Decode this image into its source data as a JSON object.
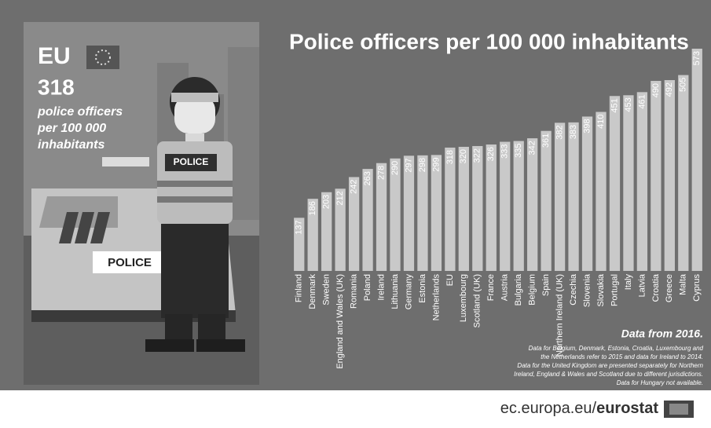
{
  "chart_data": {
    "type": "bar",
    "title": "Police officers per 100 000 inhabitants",
    "categories": [
      "Finland",
      "Denmark",
      "Sweden",
      "England and Wales (UK)",
      "Romania",
      "Poland",
      "Ireland",
      "Lithuania",
      "Germany",
      "Estonia",
      "Netherlands",
      "EU",
      "Luxembourg",
      "Scotland (UK)",
      "France",
      "Austria",
      "Bulgaria",
      "Belgium",
      "Spain",
      "Northern Ireland (UK)",
      "Czechia",
      "Slovenia",
      "Slovakia",
      "Portugal",
      "Italy",
      "Latvia",
      "Croatia",
      "Greece",
      "Malta",
      "Cyprus"
    ],
    "values": [
      137,
      186,
      203,
      212,
      242,
      263,
      278,
      290,
      297,
      298,
      299,
      318,
      320,
      322,
      326,
      333,
      335,
      342,
      361,
      382,
      383,
      398,
      410,
      451,
      453,
      461,
      490,
      492,
      505,
      573
    ],
    "color": "#c9c9c9"
  },
  "panel": {
    "region": "EU",
    "value": 318,
    "label_lines": [
      "police officers",
      "per 100 000",
      "inhabitants"
    ],
    "vest_sign": "POLICE",
    "car_sign": "POLICE"
  },
  "footnote": {
    "heading": "Data from 2016.",
    "lines": [
      "Data for Belgium, Denmark, Estonia, Croatia, Luxembourg and",
      "the Netherlands refer to 2015 and data for Ireland to 2014.",
      "Data for the United Kingdom are presented separately for Northern",
      "Ireland, England & Wales and Scotland due to different jurisdictions.",
      "Data for Hungary not available."
    ]
  },
  "footer": {
    "site": "ec.europa.eu/",
    "brand": "eurostat"
  }
}
